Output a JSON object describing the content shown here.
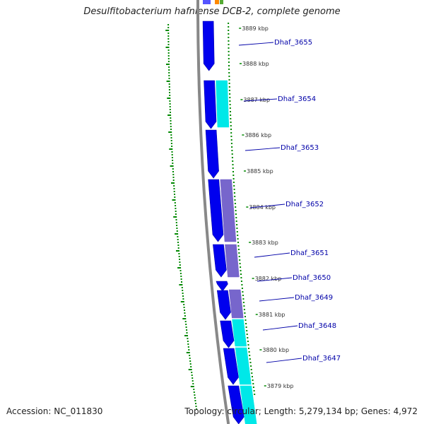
{
  "title": "Desulfitobacterium hafniense DCB-2, complete genome",
  "footer": {
    "accession": "Accession: NC_011830",
    "summary": "Topology: circular; Length: 5,279,134 bp; Genes: 4,972"
  },
  "colors": {
    "forward_cds": "#0000ee",
    "reverse_cds_cyan": "#00e8e8",
    "reverse_cds_purple": "#7766cc",
    "backbone": "#888888",
    "gc_ticks": "#008800",
    "label": "#0000a8"
  },
  "kbp_ticks": [
    "3889 kbp",
    "3888 kbp",
    "3887 kbp",
    "3886 kbp",
    "3885 kbp",
    "3884 kbp",
    "3883 kbp",
    "3882 kbp",
    "3881 kbp",
    "3880 kbp",
    "3879 kbp"
  ],
  "gene_labels": [
    "Dhaf_3655",
    "Dhaf_3654",
    "Dhaf_3653",
    "Dhaf_3652",
    "Dhaf_3651",
    "Dhaf_3650",
    "Dhaf_3649",
    "Dhaf_3648",
    "Dhaf_3647"
  ]
}
